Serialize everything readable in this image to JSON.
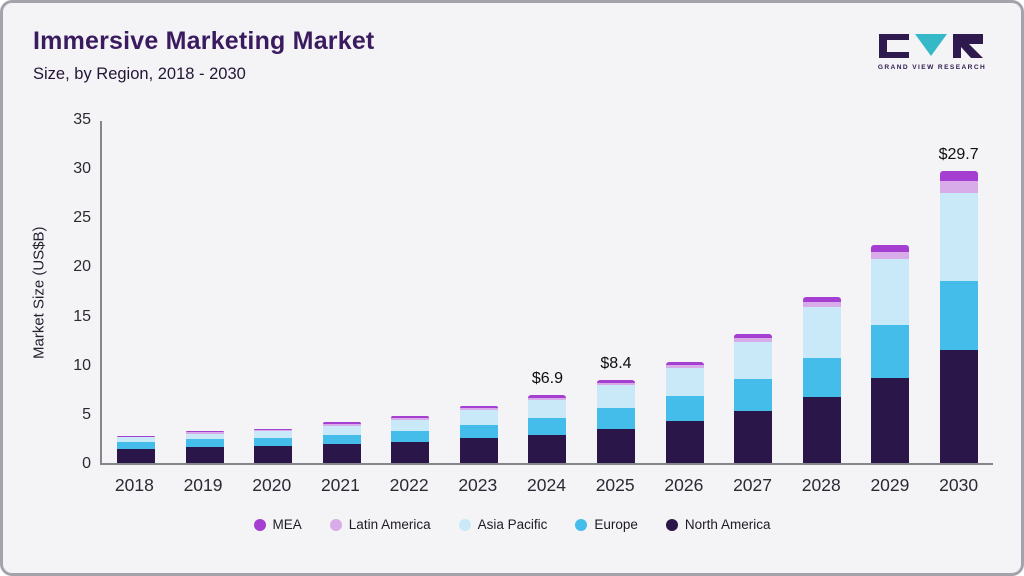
{
  "header": {
    "title": "Immersive Marketing Market",
    "subtitle": "Size, by Region, 2018 - 2030",
    "logo_text": "GRAND VIEW RESEARCH"
  },
  "chart_data": {
    "type": "bar",
    "stacked": true,
    "title": "Immersive Marketing Market Size, by Region, 2018 - 2030",
    "xlabel": "",
    "ylabel": "Market Size (US$B)",
    "ylim": [
      0,
      35
    ],
    "yticks": [
      0,
      5,
      10,
      15,
      20,
      25,
      30,
      35
    ],
    "grid": false,
    "legend_position": "bottom",
    "categories": [
      "2018",
      "2019",
      "2020",
      "2021",
      "2022",
      "2023",
      "2024",
      "2025",
      "2026",
      "2027",
      "2028",
      "2029",
      "2030"
    ],
    "series": [
      {
        "name": "North America",
        "color": "#2b1649",
        "values": [
          1.4,
          1.6,
          1.7,
          1.9,
          2.1,
          2.5,
          2.9,
          3.5,
          4.3,
          5.3,
          6.7,
          8.7,
          11.5
        ]
      },
      {
        "name": "Europe",
        "color": "#45bdea",
        "values": [
          0.7,
          0.8,
          0.85,
          1.0,
          1.2,
          1.4,
          1.7,
          2.1,
          2.5,
          3.2,
          4.0,
          5.3,
          7.0
        ]
      },
      {
        "name": "Asia Pacific",
        "color": "#c9e9f9",
        "values": [
          0.5,
          0.6,
          0.7,
          0.9,
          1.1,
          1.5,
          1.8,
          2.3,
          2.9,
          3.8,
          5.2,
          6.8,
          9.0
        ]
      },
      {
        "name": "Latin America",
        "color": "#d8abe9",
        "values": [
          0.1,
          0.15,
          0.15,
          0.2,
          0.2,
          0.2,
          0.25,
          0.25,
          0.3,
          0.4,
          0.5,
          0.7,
          1.2
        ]
      },
      {
        "name": "MEA",
        "color": "#a43fd2",
        "values": [
          0.1,
          0.15,
          0.1,
          0.2,
          0.2,
          0.2,
          0.25,
          0.25,
          0.3,
          0.4,
          0.5,
          0.7,
          1.0
        ]
      }
    ],
    "annotations": {
      "2024": "$6.9",
      "2025": "$8.4",
      "2030": "$29.7"
    },
    "legend": [
      "MEA",
      "Latin America",
      "Asia Pacific",
      "Europe",
      "North America"
    ]
  }
}
